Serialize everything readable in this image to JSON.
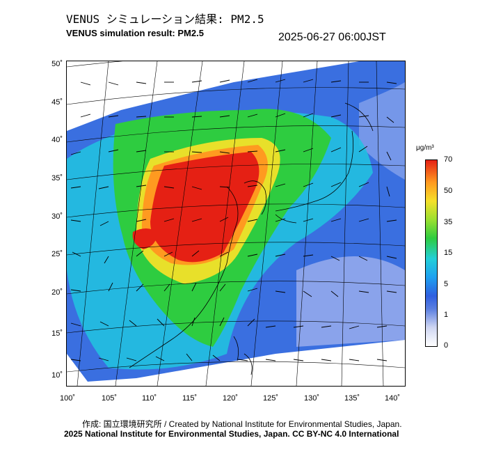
{
  "header": {
    "title_jp": "VENUS シミュレーション結果: PM2.5",
    "title_en": "VENUS simulation result: PM2.5",
    "timestamp": "2025-06-27 06:00JST"
  },
  "map": {
    "lat_labels": [
      "50˚",
      "45˚",
      "40˚",
      "35˚",
      "30˚",
      "25˚",
      "20˚",
      "15˚",
      "10˚"
    ],
    "lon_labels": [
      "100˚",
      "105˚",
      "110˚",
      "115˚",
      "120˚",
      "125˚",
      "130˚",
      "135˚",
      "140˚"
    ]
  },
  "colorbar": {
    "unit": "μg/m³",
    "ticks": [
      "70",
      "50",
      "35",
      "15",
      "5",
      "1",
      "0"
    ],
    "colors": {
      "high": "#e52014",
      "mid_high": "#ff9a20",
      "mid": "#f5e02a",
      "moderate": "#2ecc40",
      "low": "#1ea0f0",
      "very_low": "#2f5fe0",
      "minimal": "#ffffff"
    }
  },
  "footer": {
    "credit_jp_en": "作成: 国立環境研究所 / Created by National Institute for Environmental Studies, Japan.",
    "license": "2025 National Institute for Environmental Studies, Japan. CC BY-NC 4.0 International"
  }
}
